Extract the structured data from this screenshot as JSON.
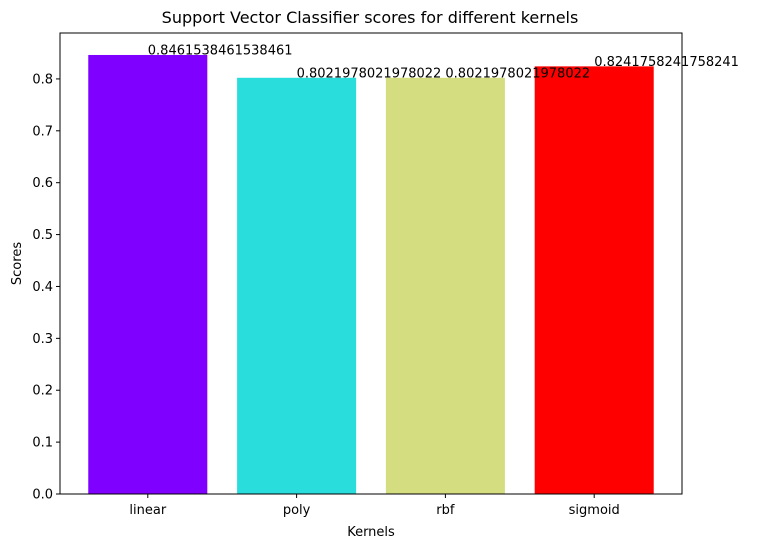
{
  "chart_data": {
    "type": "bar",
    "title": "Support Vector Classifier scores for different kernels",
    "xlabel": "Kernels",
    "ylabel": "Scores",
    "categories": [
      "linear",
      "poly",
      "rbf",
      "sigmoid"
    ],
    "values": [
      0.8461538461538461,
      0.8021978021978022,
      0.8021978021978022,
      0.8241758241758241
    ],
    "value_labels": [
      "0.8461538461538461",
      "0.8021978021978022",
      "0.8021978021978022",
      "0.8241758241758241"
    ],
    "colors": [
      "#8000ff",
      "#2adddd",
      "#d4dd80",
      "#ff0000"
    ],
    "ylim": [
      0,
      0.8885
    ],
    "yticks": [
      {
        "value": 0.0,
        "label": "0.0"
      },
      {
        "value": 0.1,
        "label": "0.1"
      },
      {
        "value": 0.2,
        "label": "0.2"
      },
      {
        "value": 0.3,
        "label": "0.3"
      },
      {
        "value": 0.4,
        "label": "0.4"
      },
      {
        "value": 0.5,
        "label": "0.5"
      },
      {
        "value": 0.6,
        "label": "0.6"
      },
      {
        "value": 0.7,
        "label": "0.7"
      },
      {
        "value": 0.8,
        "label": "0.8"
      }
    ],
    "grid": false,
    "legend": "none"
  }
}
